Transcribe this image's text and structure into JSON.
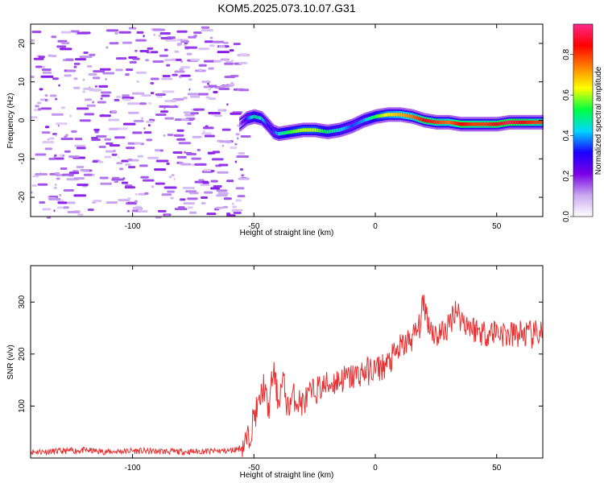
{
  "title": "KOM5.2025.073.10.07.G31",
  "chart_data": [
    {
      "type": "heatmap",
      "title": "KOM5.2025.073.10.07.G31",
      "xlabel": "Height of straight line (km)",
      "ylabel": "Frequency (Hz)",
      "xlim": [
        -142,
        69
      ],
      "ylim": [
        -25,
        25
      ],
      "xticks": [
        -100,
        -50,
        0,
        50
      ],
      "yticks": [
        -20,
        -10,
        0,
        10,
        20
      ],
      "colorbar": {
        "label": "Normalized spectral amplitude",
        "range": [
          0,
          0.95
        ],
        "ticks": [
          0.0,
          0.2,
          0.4,
          0.6,
          0.8
        ],
        "colors": [
          "#ffffff",
          "#c9a8f0",
          "#7a00e6",
          "#1b00ff",
          "#00d8ff",
          "#00ff40",
          "#ffff00",
          "#ff8000",
          "#ff0000",
          "#ff2a8a"
        ]
      },
      "noise_region": {
        "x": [
          -142,
          -55
        ],
        "amplitude": 0.15
      },
      "ridge": {
        "x": [
          -56,
          -53,
          -50,
          -47,
          -44,
          -42,
          -40,
          -35,
          -30,
          -25,
          -20,
          -15,
          -10,
          -5,
          0,
          5,
          10,
          15,
          20,
          25,
          30,
          35,
          40,
          45,
          50,
          55,
          60,
          65,
          69
        ],
        "frequency": [
          -1,
          0.5,
          1,
          0.5,
          -1.5,
          -3,
          -3.5,
          -3,
          -2.5,
          -2.5,
          -3,
          -2.5,
          -1.5,
          0,
          1,
          1.5,
          1.5,
          1,
          0,
          -0.5,
          -0.5,
          -1,
          -1,
          -1,
          -1,
          -0.5,
          -0.5,
          -0.5,
          -0.5
        ],
        "amplitude": [
          0.15,
          0.35,
          0.5,
          0.45,
          0.3,
          0.35,
          0.45,
          0.55,
          0.6,
          0.6,
          0.5,
          0.45,
          0.35,
          0.4,
          0.55,
          0.65,
          0.7,
          0.75,
          0.85,
          0.8,
          0.75,
          0.85,
          0.8,
          0.8,
          0.85,
          0.9,
          0.85,
          0.8,
          0.8
        ]
      }
    },
    {
      "type": "line",
      "xlabel": "Height of straight line (km)",
      "ylabel": "SNR (v/v)",
      "xlim": [
        -142,
        69
      ],
      "ylim": [
        0,
        370
      ],
      "xticks": [
        -100,
        -50,
        0,
        50
      ],
      "yticks": [
        100,
        200,
        300
      ],
      "color": "#e83030",
      "series": [
        {
          "x": [
            -142,
            -130,
            -120,
            -110,
            -100,
            -90,
            -80,
            -70,
            -60,
            -55,
            -52,
            -50,
            -48,
            -46,
            -44,
            -42,
            -40,
            -38,
            -36,
            -34,
            -32,
            -30,
            -25,
            -20,
            -15,
            -10,
            -5,
            0,
            5,
            10,
            15,
            18,
            20,
            22,
            25,
            30,
            33,
            35,
            40,
            45,
            50,
            55,
            60,
            65,
            69
          ],
          "y": [
            12,
            13,
            15,
            12,
            14,
            13,
            12,
            13,
            14,
            20,
            40,
            80,
            100,
            140,
            90,
            170,
            110,
            150,
            95,
            120,
            110,
            105,
            130,
            140,
            150,
            155,
            165,
            170,
            180,
            210,
            230,
            250,
            300,
            260,
            235,
            250,
            290,
            270,
            250,
            240,
            245,
            235,
            240,
            235,
            245
          ]
        }
      ]
    }
  ]
}
